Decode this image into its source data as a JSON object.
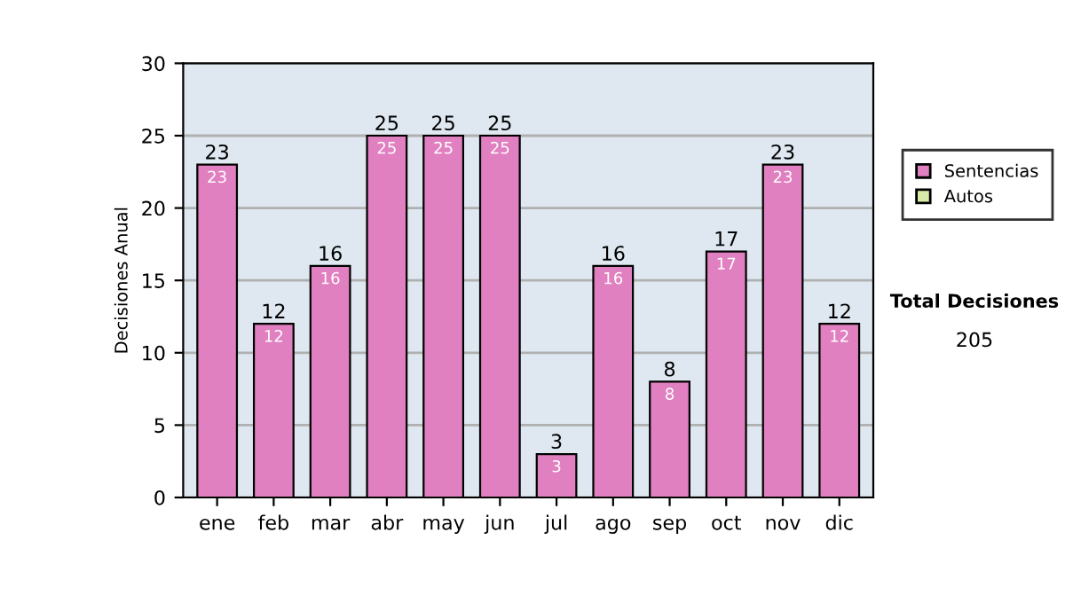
{
  "chart_data": {
    "type": "bar",
    "stacked": true,
    "ylabel": "Decisiones Anual",
    "categories": [
      "ene",
      "feb",
      "mar",
      "abr",
      "may",
      "jun",
      "jul",
      "ago",
      "sep",
      "oct",
      "nov",
      "dic"
    ],
    "series": [
      {
        "name": "Sentencias",
        "color": "#e080c0",
        "values": [
          23,
          12,
          16,
          25,
          25,
          25,
          3,
          16,
          8,
          17,
          23,
          12
        ],
        "value_labels": [
          "23",
          "12",
          "16",
          "25",
          "25",
          "25",
          "3",
          "16",
          "8",
          "17",
          "23",
          "12"
        ]
      },
      {
        "name": "Autos",
        "color": "#d8eca8",
        "values": [
          0,
          0,
          0,
          0,
          0,
          0,
          0,
          0,
          0,
          0,
          0,
          0
        ]
      }
    ],
    "totals": [
      "23",
      "12",
      "16",
      "25",
      "25",
      "25",
      "3",
      "16",
      "8",
      "17",
      "23",
      "12"
    ],
    "ylim": [
      0,
      30
    ],
    "yticks": [
      0,
      5,
      10,
      15,
      20,
      25,
      30
    ],
    "grid": "y",
    "legend": "right",
    "annotations": [
      "Total Decisiones",
      "205"
    ]
  }
}
